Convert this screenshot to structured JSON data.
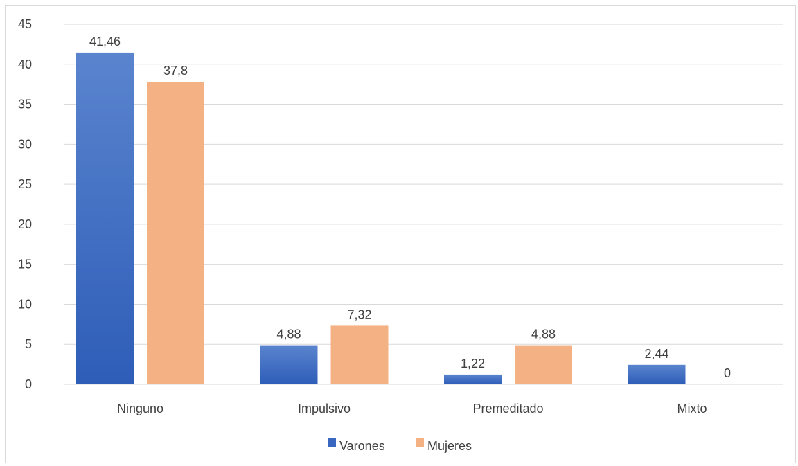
{
  "chart_data": {
    "type": "bar",
    "categories": [
      "Ninguno",
      "Impulsivo",
      "Premeditado",
      "Mixto"
    ],
    "series": [
      {
        "name": "Varones",
        "values": [
          41.46,
          4.88,
          1.22,
          2.44
        ],
        "data_labels": [
          "41,46",
          "4,88",
          "1,22",
          "2,44"
        ],
        "color": "#4472C4"
      },
      {
        "name": "Mujeres",
        "values": [
          37.8,
          7.32,
          4.88,
          0
        ],
        "data_labels": [
          "37,8",
          "7,32",
          "4,88",
          "0"
        ],
        "color": "#F4B183"
      }
    ],
    "ylim": [
      0,
      45
    ],
    "yticks": [
      0,
      5,
      10,
      15,
      20,
      25,
      30,
      35,
      40,
      45
    ],
    "grid": true,
    "legend": "bottom",
    "title": "",
    "xlabel": "",
    "ylabel": ""
  }
}
